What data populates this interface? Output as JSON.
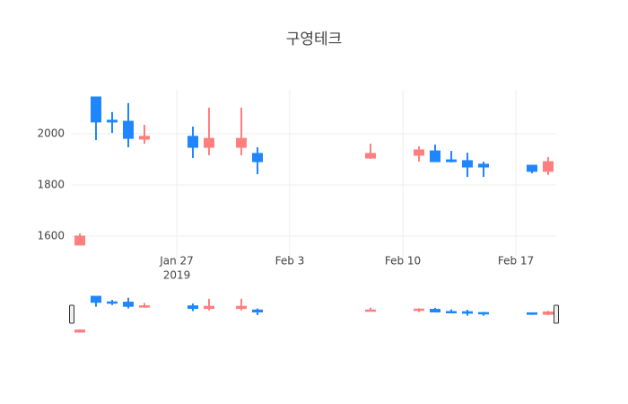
{
  "chart_data": {
    "type": "candlestick",
    "title": "구영테크",
    "x": [
      "2019-01-21",
      "2019-01-22",
      "2019-01-23",
      "2019-01-24",
      "2019-01-25",
      "2019-01-28",
      "2019-01-29",
      "2019-01-31",
      "2019-02-01",
      "2019-02-08",
      "2019-02-11",
      "2019-02-12",
      "2019-02-13",
      "2019-02-14",
      "2019-02-15",
      "2019-02-18",
      "2019-02-19"
    ],
    "open": [
      1565,
      2144,
      2053,
      2049,
      1979,
      1990,
      1947,
      1947,
      1923,
      1905,
      1916,
      1933,
      1898,
      1895,
      1881,
      1877,
      1853
    ],
    "high": [
      1610,
      2144,
      2085,
      2120,
      2035,
      2028,
      2102,
      2102,
      1947,
      1961,
      1951,
      1958,
      1933,
      1926,
      1891,
      1877,
      1909
    ],
    "low": [
      1565,
      1975,
      2003,
      1947,
      1961,
      1905,
      1916,
      1916,
      1842,
      1902,
      1891,
      1891,
      1888,
      1831,
      1831,
      1845,
      1839
    ],
    "close": [
      1600,
      2046,
      2046,
      1982,
      1990,
      1947,
      1982,
      1982,
      1891,
      1923,
      1937,
      1891,
      1891,
      1870,
      1870,
      1853,
      1891
    ],
    "increasing_color": "#ff7f7f",
    "decreasing_color": "#1f86ff",
    "xlim": [
      "2019-01-20T12:00",
      "2019-02-19T12:00"
    ],
    "xticks": [
      {
        "value": "2019-01-27",
        "label": "Jan 27"
      },
      {
        "value": "2019-02-03",
        "label": "Feb 3"
      },
      {
        "value": "2019-02-10",
        "label": "Feb 10"
      },
      {
        "value": "2019-02-17",
        "label": "Feb 17"
      }
    ],
    "x_year_label": "2019",
    "ylim": [
      1505,
      2172
    ],
    "yticks": [
      1600,
      1800,
      2000
    ],
    "grid": true,
    "rangeslider": true
  }
}
